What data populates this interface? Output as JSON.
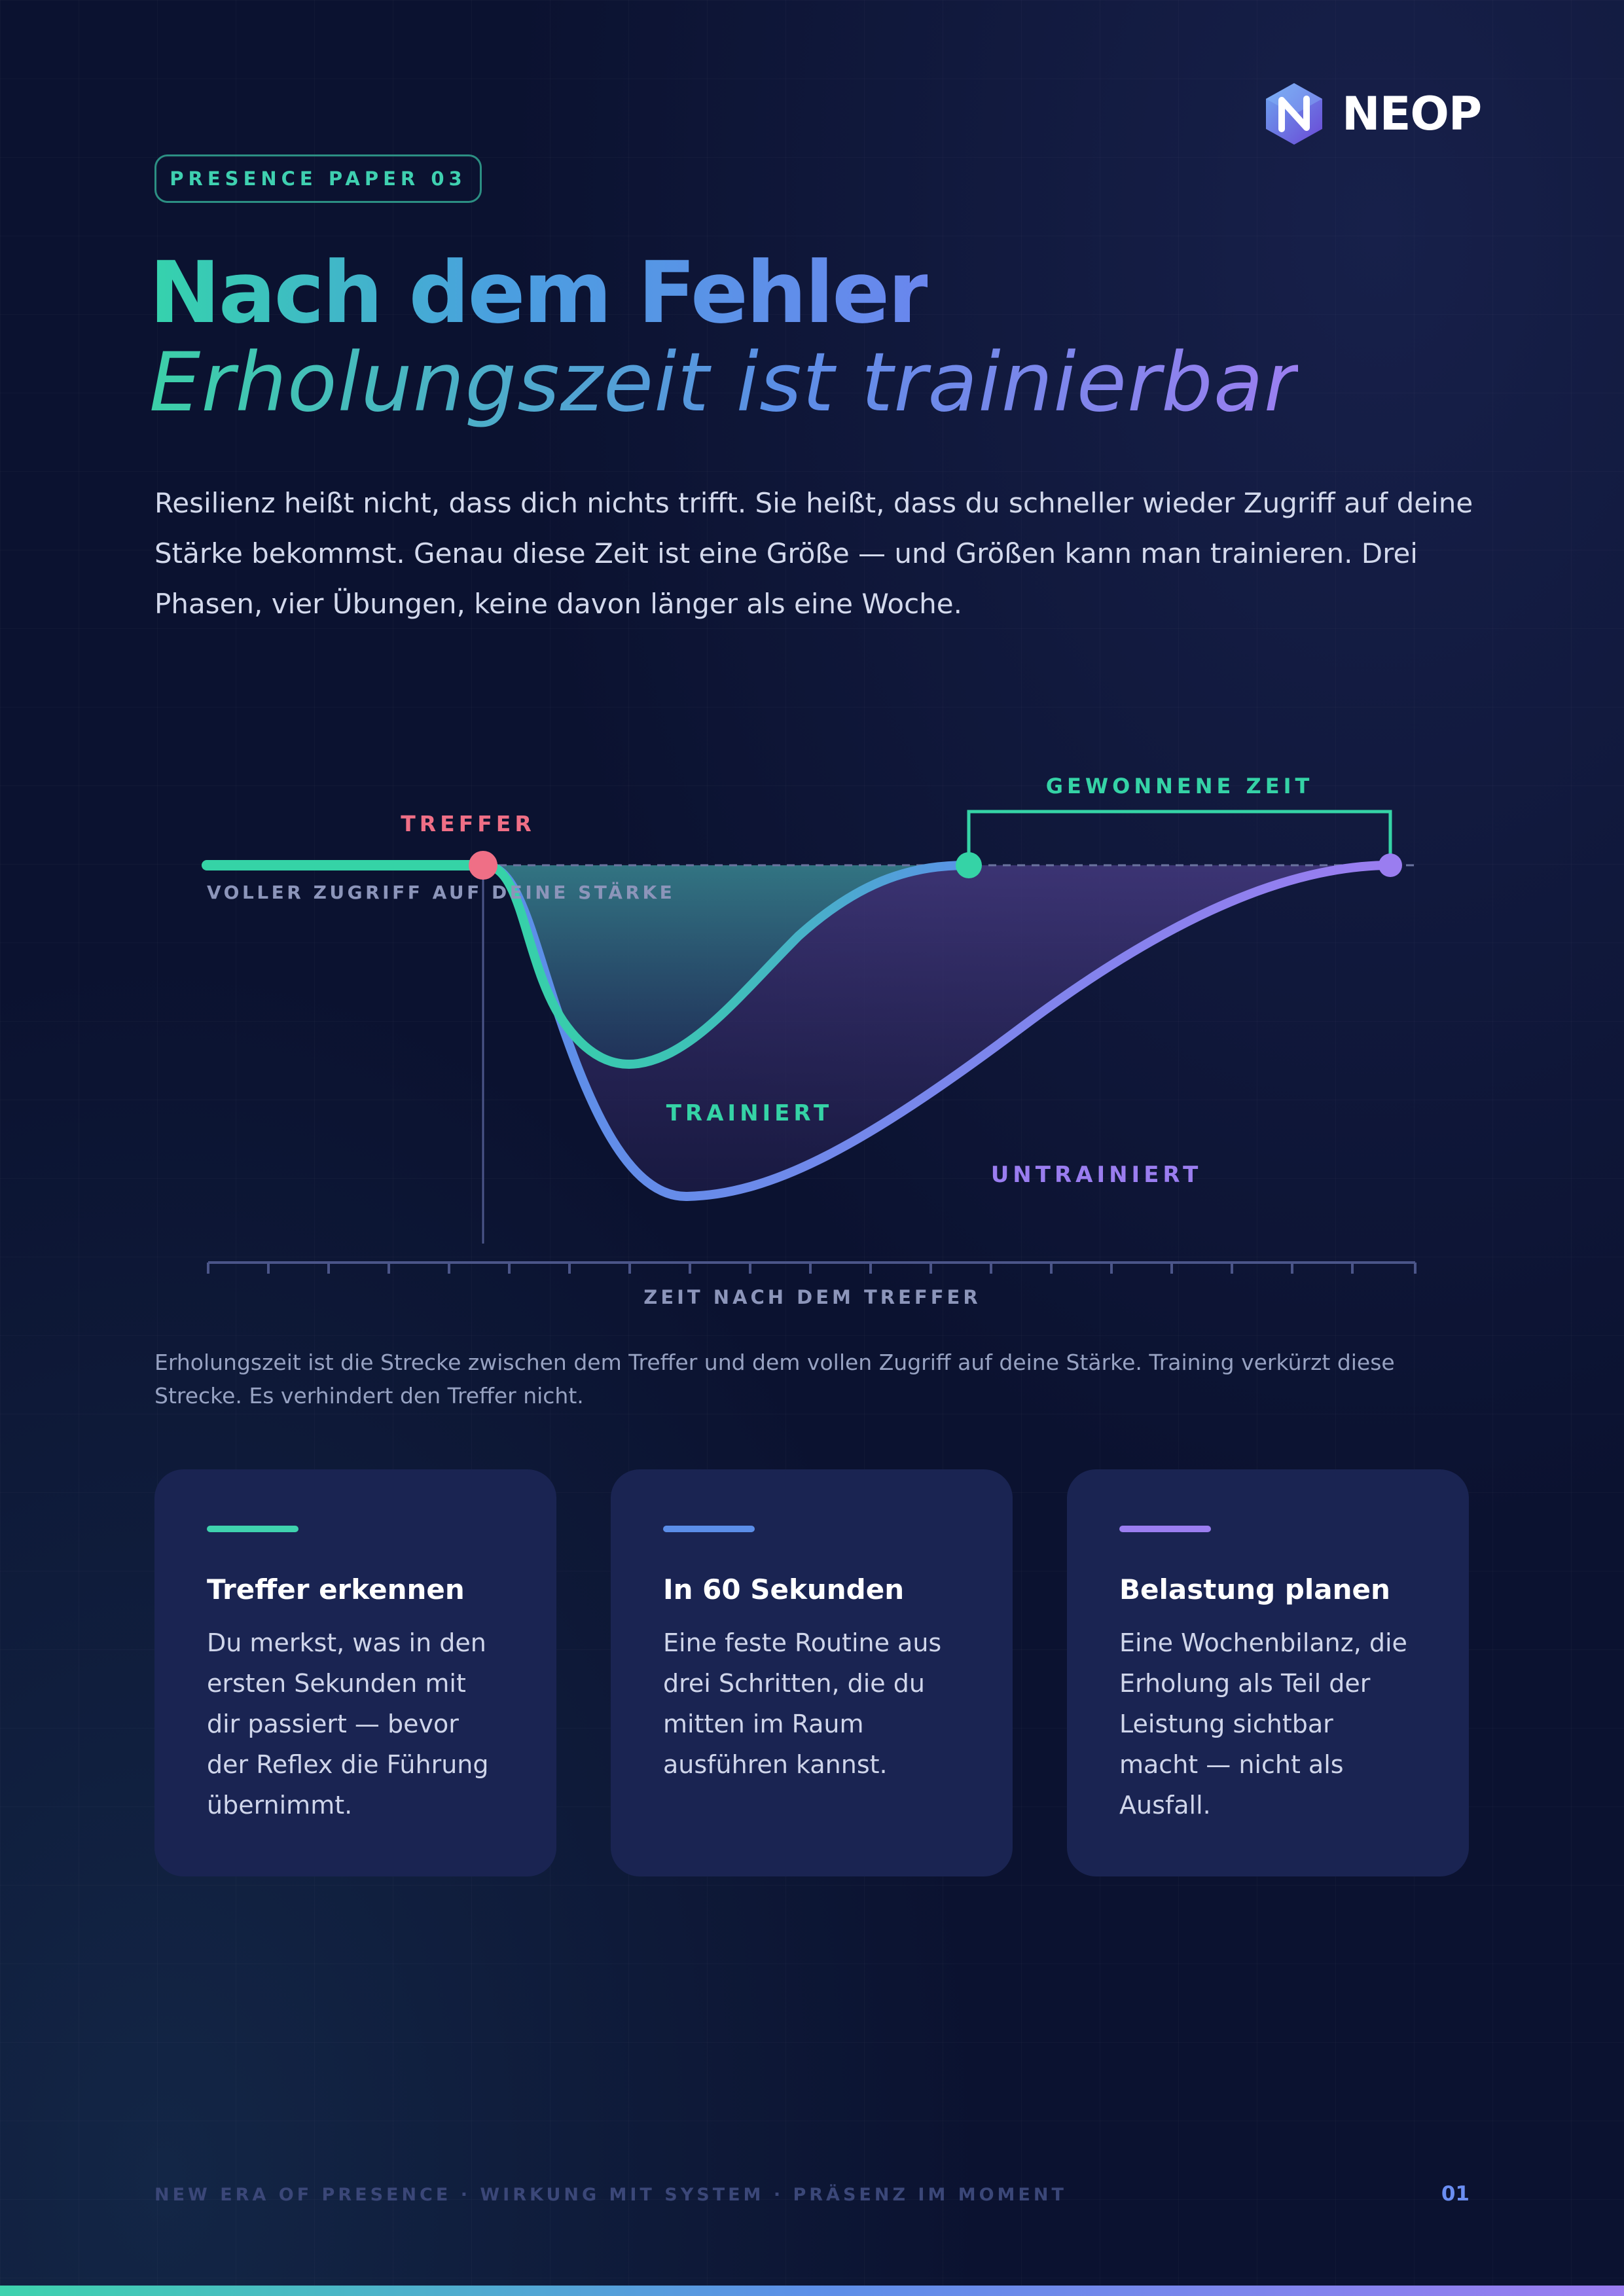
{
  "brand": {
    "name": "NEOP",
    "icon": "hexagon-n-logo-icon"
  },
  "badge": "PRESENCE PAPER 03",
  "headline": "Nach dem Fehler",
  "subheadline": "Erholungszeit ist trainierbar",
  "intro": "Resilienz heißt nicht, dass dich nichts trifft. Sie heißt, dass du schneller wieder Zugriff auf deine Stärke bekommst. Genau diese Zeit ist eine Größe — und Größen kann man trainieren. Drei Phasen, vier Übungen, keine davon länger als eine Woche.",
  "diagram": {
    "labels": {
      "hit": "TREFFER",
      "baseline": "VOLLER ZUGRIFF AUF DEINE STÄRKE",
      "gained": "GEWONNENE ZEIT",
      "trained": "TRAINIERT",
      "untrained": "UNTRAINIERT",
      "axis": "ZEIT NACH DEM TREFFER"
    },
    "colors": {
      "hit": "#ef6f86",
      "trained": "#35d3a6",
      "untrained": "#8e7bf0",
      "middle": "#5b8fe8",
      "axis": "#4b5589"
    }
  },
  "caption": "Erholungszeit ist die Strecke zwischen dem Treffer und dem vollen Zugriff auf deine Stärke. Training verkürzt diese Strecke. Es verhindert den Treffer nicht.",
  "cards": [
    {
      "accent": "#3fd3ae",
      "title": "Treffer erkennen",
      "text": "Du merkst, was in den ersten Sekunden mit dir passiert — bevor der Reflex die Führung übernimmt."
    },
    {
      "accent": "#5b8ee8",
      "title": "In 60 Sekunden",
      "text": "Eine feste Routine aus drei Schritten, die du mitten im Raum ausführen kannst."
    },
    {
      "accent": "#9b7ef0",
      "title": "Belastung planen",
      "text": "Eine Wochenbilanz, die Erholung als Teil der Leistung sichtbar macht — nicht als Ausfall."
    }
  ],
  "footer": {
    "tagline": "NEW ERA OF PRESENCE · WIRKUNG MIT SYSTEM · PRÄSENZ IM MOMENT",
    "page": "01"
  }
}
